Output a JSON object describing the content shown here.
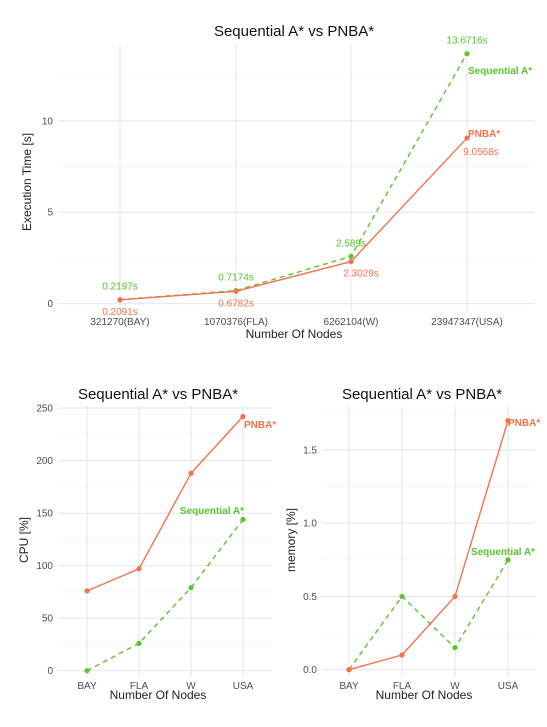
{
  "colors": {
    "pnba": "#F4724B",
    "sequential": "#57C52B"
  },
  "chart_data": [
    {
      "type": "line",
      "title": "Sequential A* vs PNBA*",
      "xlabel": "Number Of Nodes",
      "ylabel": "Execution Time [s]",
      "categories": [
        "321270(BAY)",
        "1070376(FLA)",
        "6262104(W)",
        "23947347(USA)"
      ],
      "ylim": [
        -0.4,
        14.2
      ],
      "yticks": [
        0,
        5,
        10
      ],
      "grid": true,
      "series": [
        {
          "name": "Sequential A*",
          "style": "dashed",
          "values": [
            0.2197,
            0.7174,
            2.589,
            13.6716
          ],
          "data_labels": [
            "0.2197s",
            "0.7174s",
            "2.589s",
            "13.6716s"
          ]
        },
        {
          "name": "PNBA*",
          "style": "solid",
          "values": [
            0.2091,
            0.6782,
            2.3029,
            9.0568
          ],
          "data_labels": [
            "0.2091s",
            "0.6782s",
            "2.3029s",
            "9.0568s"
          ]
        }
      ]
    },
    {
      "type": "line",
      "title": "Sequential A* vs PNBA*",
      "xlabel": "Number Of Nodes",
      "ylabel": "CPU [%]",
      "categories": [
        "BAY",
        "FLA",
        "W",
        "USA"
      ],
      "ylim": [
        -6,
        252
      ],
      "yticks": [
        0,
        50,
        100,
        150,
        200,
        250
      ],
      "grid": true,
      "series": [
        {
          "name": "Sequential A*",
          "style": "dashed",
          "values": [
            0,
            26,
            79,
            144
          ]
        },
        {
          "name": "PNBA*",
          "style": "solid",
          "values": [
            76,
            97,
            188,
            242
          ]
        }
      ]
    },
    {
      "type": "line",
      "title": "Sequential A* vs PNBA*",
      "xlabel": "Number Of Nodes",
      "ylabel": "memory [%]",
      "categories": [
        "BAY",
        "FLA",
        "W",
        "USA"
      ],
      "ylim": [
        -0.05,
        1.8
      ],
      "yticks": [
        0.0,
        0.5,
        1.0,
        1.5
      ],
      "ytick_labels": [
        "0.0",
        "0.5",
        "1.0",
        "1.5"
      ],
      "grid": true,
      "series": [
        {
          "name": "Sequential A*",
          "style": "dashed",
          "values": [
            0.0,
            0.5,
            0.15,
            0.75
          ]
        },
        {
          "name": "PNBA*",
          "style": "solid",
          "values": [
            0.0,
            0.1,
            0.5,
            1.7
          ]
        }
      ]
    }
  ]
}
